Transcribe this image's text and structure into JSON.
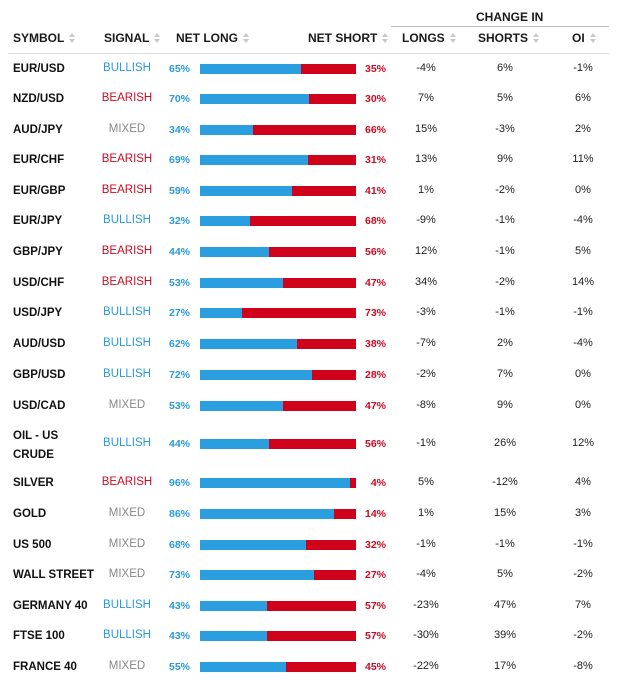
{
  "colors": {
    "long": "#2b9ee0",
    "short": "#d0021b",
    "bullish": "#2a9ad8",
    "bearish": "#cc0b23",
    "mixed": "#888888"
  },
  "header": {
    "change_in": "CHANGE IN",
    "symbol": "SYMBOL",
    "signal": "SIGNAL",
    "net_long": "NET LONG",
    "net_short": "NET SHORT",
    "longs": "LONGS",
    "shorts": "SHORTS",
    "oi": "OI"
  },
  "rows": [
    {
      "symbol": "EUR/USD",
      "signal": "BULLISH",
      "long_pct": "65%",
      "long": 0.65,
      "short_pct": "35%",
      "longs": "-4%",
      "shorts": "6%",
      "oi": "-1%"
    },
    {
      "symbol": "NZD/USD",
      "signal": "BEARISH",
      "long_pct": "70%",
      "long": 0.7,
      "short_pct": "30%",
      "longs": "7%",
      "shorts": "5%",
      "oi": "6%"
    },
    {
      "symbol": "AUD/JPY",
      "signal": "MIXED",
      "long_pct": "34%",
      "long": 0.34,
      "short_pct": "66%",
      "longs": "15%",
      "shorts": "-3%",
      "oi": "2%"
    },
    {
      "symbol": "EUR/CHF",
      "signal": "BEARISH",
      "long_pct": "69%",
      "long": 0.69,
      "short_pct": "31%",
      "longs": "13%",
      "shorts": "9%",
      "oi": "11%"
    },
    {
      "symbol": "EUR/GBP",
      "signal": "BEARISH",
      "long_pct": "59%",
      "long": 0.59,
      "short_pct": "41%",
      "longs": "1%",
      "shorts": "-2%",
      "oi": "0%"
    },
    {
      "symbol": "EUR/JPY",
      "signal": "BULLISH",
      "long_pct": "32%",
      "long": 0.32,
      "short_pct": "68%",
      "longs": "-9%",
      "shorts": "-1%",
      "oi": "-4%"
    },
    {
      "symbol": "GBP/JPY",
      "signal": "BEARISH",
      "long_pct": "44%",
      "long": 0.44,
      "short_pct": "56%",
      "longs": "12%",
      "shorts": "-1%",
      "oi": "5%"
    },
    {
      "symbol": "USD/CHF",
      "signal": "BEARISH",
      "long_pct": "53%",
      "long": 0.53,
      "short_pct": "47%",
      "longs": "34%",
      "shorts": "-2%",
      "oi": "14%"
    },
    {
      "symbol": "USD/JPY",
      "signal": "BULLISH",
      "long_pct": "27%",
      "long": 0.27,
      "short_pct": "73%",
      "longs": "-3%",
      "shorts": "-1%",
      "oi": "-1%"
    },
    {
      "symbol": "AUD/USD",
      "signal": "BULLISH",
      "long_pct": "62%",
      "long": 0.62,
      "short_pct": "38%",
      "longs": "-7%",
      "shorts": "2%",
      "oi": "-4%"
    },
    {
      "symbol": "GBP/USD",
      "signal": "BULLISH",
      "long_pct": "72%",
      "long": 0.72,
      "short_pct": "28%",
      "longs": "-2%",
      "shorts": "7%",
      "oi": "0%"
    },
    {
      "symbol": "USD/CAD",
      "signal": "MIXED",
      "long_pct": "53%",
      "long": 0.53,
      "short_pct": "47%",
      "longs": "-8%",
      "shorts": "9%",
      "oi": "0%"
    },
    {
      "symbol": "OIL - US CRUDE",
      "symbol_line1": "OIL - US",
      "symbol_line2": "CRUDE",
      "signal": "BULLISH",
      "long_pct": "44%",
      "long": 0.44,
      "short_pct": "56%",
      "longs": "-1%",
      "shorts": "26%",
      "oi": "12%"
    },
    {
      "symbol": "SILVER",
      "signal": "BEARISH",
      "long_pct": "96%",
      "long": 0.96,
      "short_pct": "4%",
      "longs": "5%",
      "shorts": "-12%",
      "oi": "4%"
    },
    {
      "symbol": "GOLD",
      "signal": "MIXED",
      "long_pct": "86%",
      "long": 0.86,
      "short_pct": "14%",
      "longs": "1%",
      "shorts": "15%",
      "oi": "3%"
    },
    {
      "symbol": "US 500",
      "signal": "MIXED",
      "long_pct": "68%",
      "long": 0.68,
      "short_pct": "32%",
      "longs": "-1%",
      "shorts": "-1%",
      "oi": "-1%"
    },
    {
      "symbol": "WALL STREET",
      "signal": "MIXED",
      "long_pct": "73%",
      "long": 0.73,
      "short_pct": "27%",
      "longs": "-4%",
      "shorts": "5%",
      "oi": "-2%"
    },
    {
      "symbol": "GERMANY 40",
      "signal": "BULLISH",
      "long_pct": "43%",
      "long": 0.43,
      "short_pct": "57%",
      "longs": "-23%",
      "shorts": "47%",
      "oi": "7%"
    },
    {
      "symbol": "FTSE 100",
      "signal": "BULLISH",
      "long_pct": "43%",
      "long": 0.43,
      "short_pct": "57%",
      "longs": "-30%",
      "shorts": "39%",
      "oi": "-2%"
    },
    {
      "symbol": "FRANCE 40",
      "signal": "MIXED",
      "long_pct": "55%",
      "long": 0.55,
      "short_pct": "45%",
      "longs": "-22%",
      "shorts": "17%",
      "oi": "-8%"
    }
  ]
}
